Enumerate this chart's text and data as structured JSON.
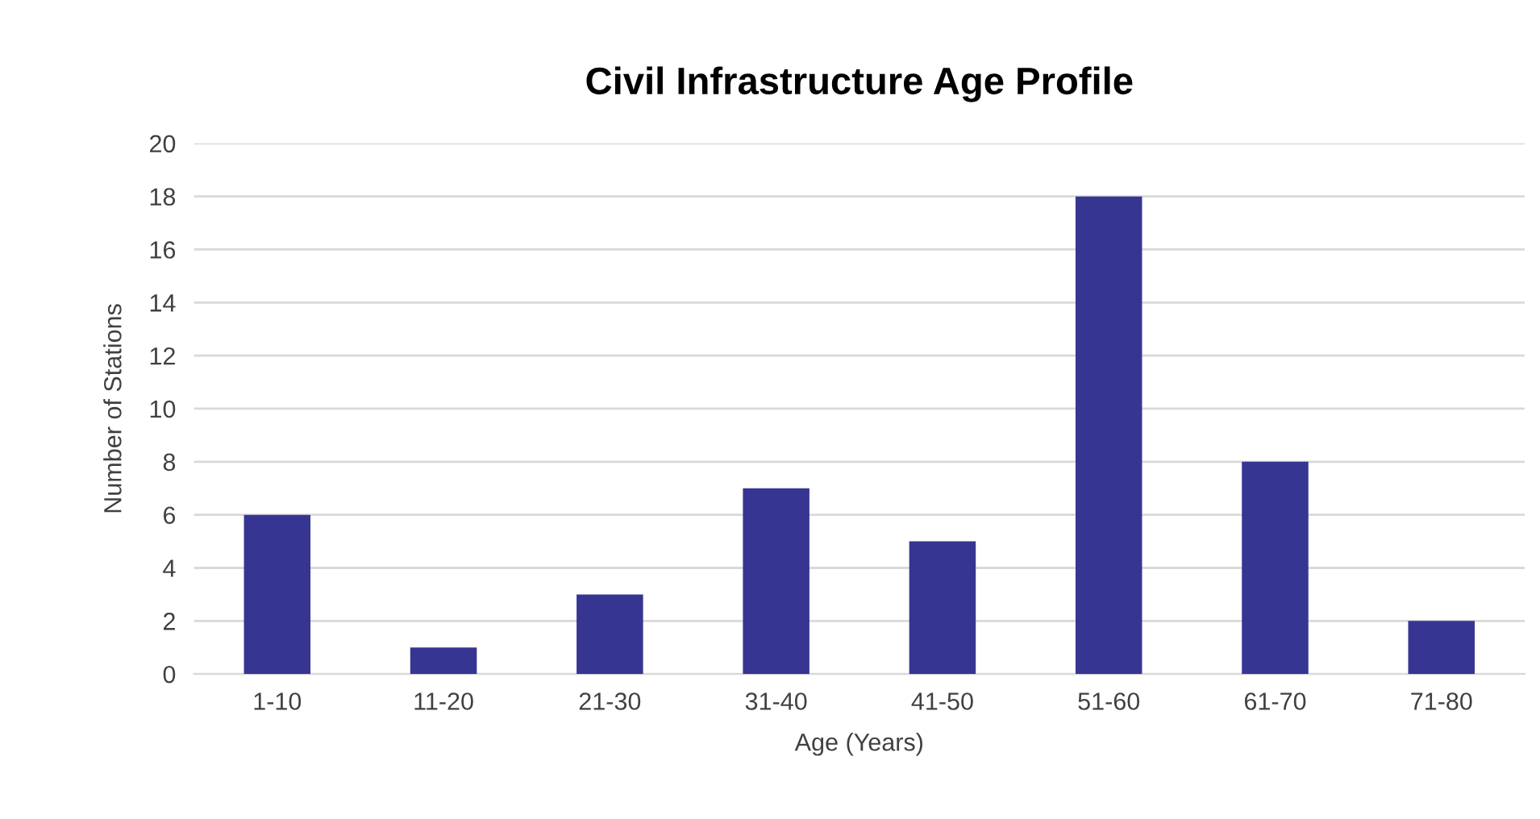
{
  "chart_data": {
    "type": "bar",
    "title": "Civil Infrastructure Age Profile",
    "xlabel": "Age (Years)",
    "ylabel": "Number of Stations",
    "categories": [
      "1-10",
      "11-20",
      "21-30",
      "31-40",
      "41-50",
      "51-60",
      "61-70",
      "71-80"
    ],
    "values": [
      6,
      1,
      3,
      7,
      5,
      18,
      8,
      2
    ],
    "color": "#373592",
    "ylim": [
      0,
      20
    ],
    "yticks": [
      0,
      2,
      4,
      6,
      8,
      10,
      12,
      14,
      16,
      18,
      20
    ],
    "grid": "y"
  }
}
